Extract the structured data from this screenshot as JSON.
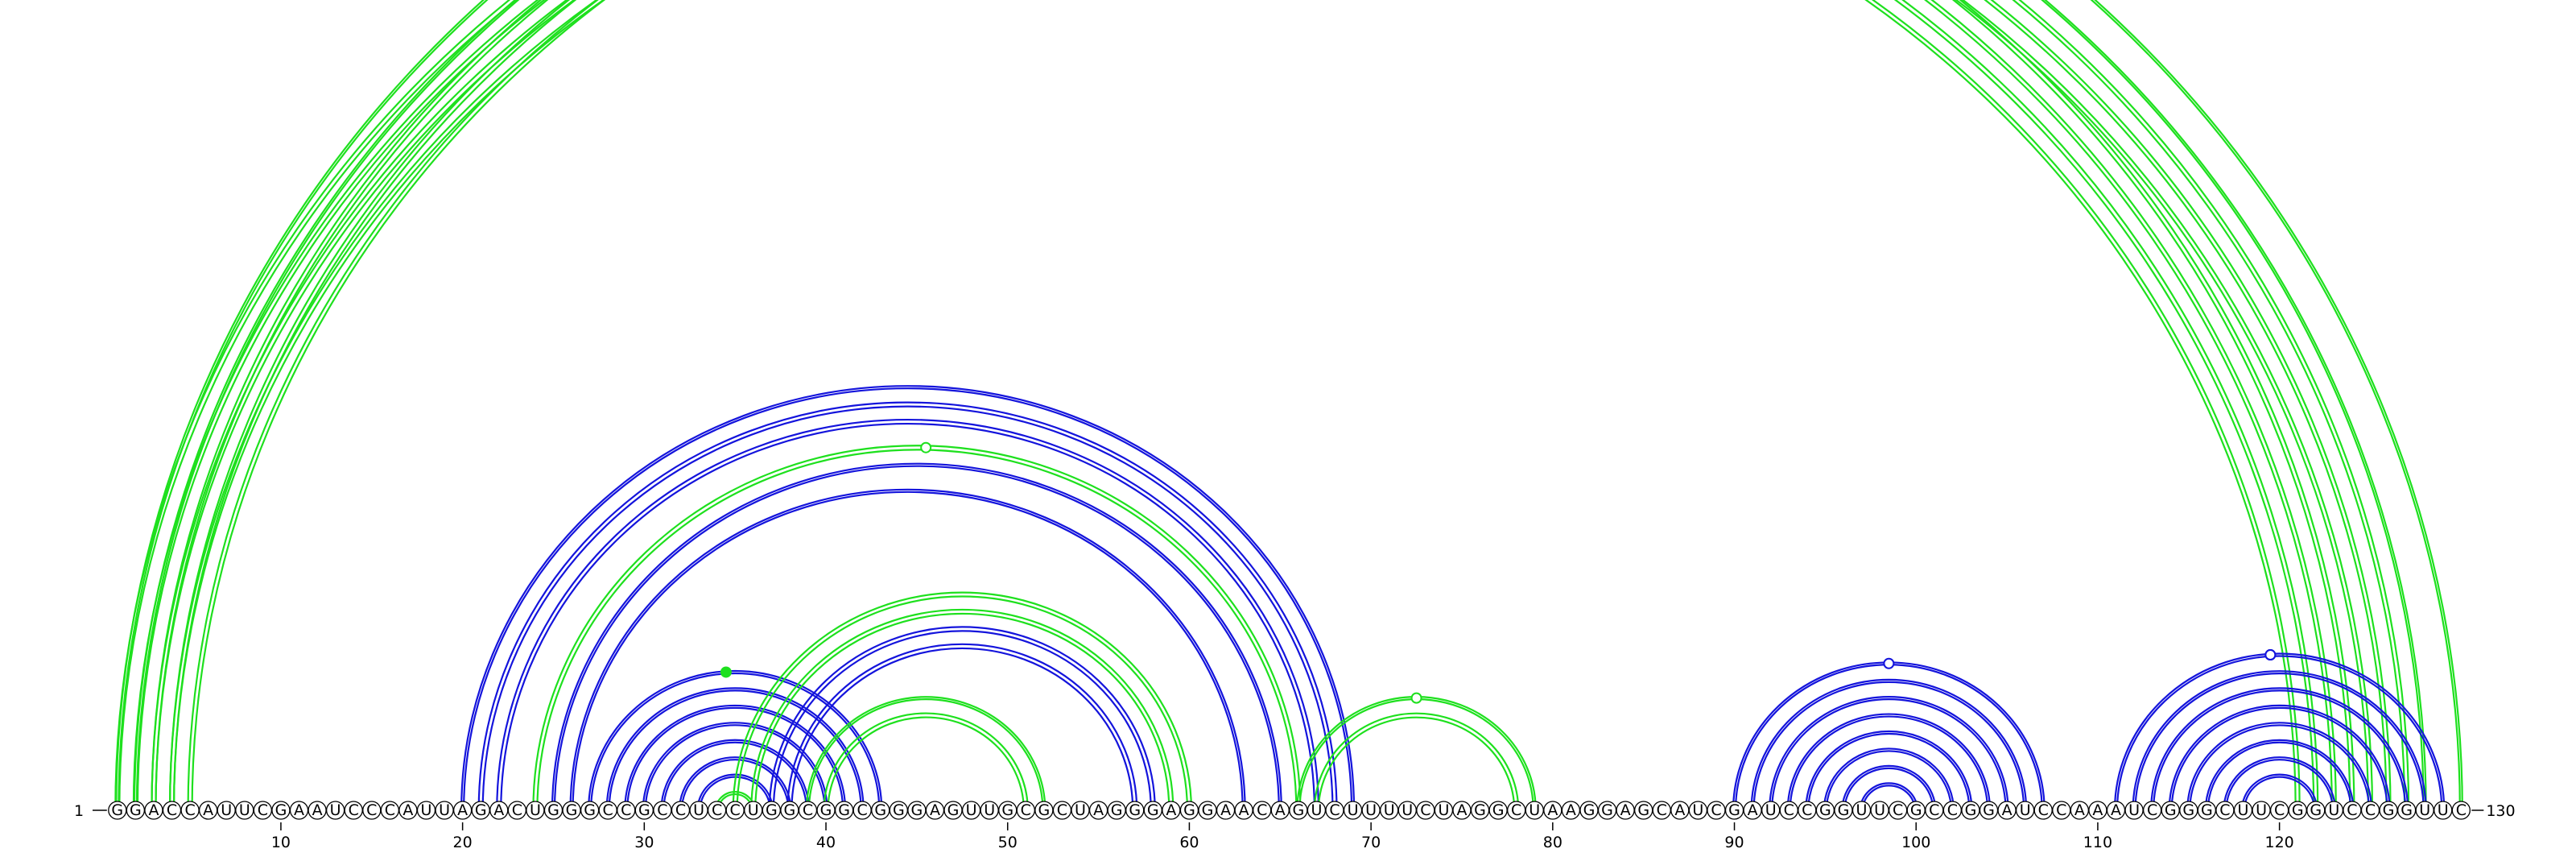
{
  "sequence": "GGACCAUUCGAAUCCCAUUAGACUGGGCCGCCUCCUGGCGGCGGGAGUUGCGCUAGGGAGGAACAGUCUUUUCUAGGCUAAGGAGCAUCGAUCCGGUUCGCCGGAUCCAAAUCGGGCUUCGGUCCGGUUC",
  "start_label": "1",
  "end_label": "130",
  "tick_positions": [
    10,
    20,
    30,
    40,
    50,
    60,
    70,
    80,
    90,
    100,
    110,
    120
  ],
  "colors": {
    "green": "#1ee01e",
    "blue": "#1414dc"
  },
  "pairs": [
    [
      1,
      130,
      "green",
      3
    ],
    [
      2,
      128,
      "green",
      3
    ],
    [
      3,
      127,
      "green",
      5
    ],
    [
      4,
      126,
      "green",
      5
    ],
    [
      5,
      125,
      "green",
      5
    ],
    [
      1,
      124,
      "green",
      5
    ],
    [
      2,
      123,
      "green",
      5
    ],
    [
      3,
      122,
      "green",
      5
    ],
    [
      4,
      121,
      "green",
      5
    ],
    [
      20,
      69,
      "blue",
      3
    ],
    [
      21,
      68,
      "blue",
      5
    ],
    [
      22,
      67,
      "blue",
      5
    ],
    [
      24,
      66,
      "green",
      5
    ],
    [
      25,
      65,
      "blue",
      3
    ],
    [
      26,
      63,
      "blue",
      3
    ],
    [
      27,
      43,
      "blue",
      3
    ],
    [
      28,
      42,
      "blue",
      3
    ],
    [
      29,
      41,
      "blue",
      3
    ],
    [
      30,
      40,
      "blue",
      3
    ],
    [
      31,
      39,
      "blue",
      3
    ],
    [
      32,
      38,
      "blue",
      3
    ],
    [
      33,
      37,
      "blue",
      3
    ],
    [
      34,
      36,
      "green",
      3
    ],
    [
      35,
      60,
      "green",
      5
    ],
    [
      36,
      59,
      "green",
      5
    ],
    [
      37,
      58,
      "blue",
      5
    ],
    [
      38,
      57,
      "blue",
      5
    ],
    [
      39,
      52,
      "green",
      3
    ],
    [
      40,
      51,
      "green",
      5
    ],
    [
      66,
      79,
      "green",
      3
    ],
    [
      67,
      78,
      "green",
      5
    ],
    [
      90,
      107,
      "blue",
      3
    ],
    [
      91,
      106,
      "blue",
      3
    ],
    [
      92,
      105,
      "blue",
      3
    ],
    [
      93,
      104,
      "blue",
      3
    ],
    [
      94,
      103,
      "blue",
      3
    ],
    [
      95,
      102,
      "blue",
      3
    ],
    [
      96,
      101,
      "blue",
      3
    ],
    [
      97,
      100,
      "blue",
      3
    ],
    [
      111,
      129,
      "blue",
      3
    ],
    [
      112,
      128,
      "blue",
      3
    ],
    [
      113,
      127,
      "blue",
      3
    ],
    [
      114,
      126,
      "blue",
      3
    ],
    [
      115,
      125,
      "blue",
      3
    ],
    [
      116,
      124,
      "blue",
      3
    ],
    [
      117,
      123,
      "blue",
      3
    ],
    [
      118,
      122,
      "blue",
      3
    ]
  ],
  "markers": [
    [
      65.5,
      0.98,
      "green",
      "open"
    ],
    [
      45.5,
      0.99,
      "green",
      "open"
    ],
    [
      72.5,
      0.99,
      "green",
      "open"
    ],
    [
      119.5,
      0.96,
      "blue",
      "open"
    ],
    [
      119.5,
      0.96,
      "blue",
      "open"
    ],
    [
      119.5,
      0.9,
      "blue",
      "open"
    ],
    [
      98.5,
      0.9,
      "blue",
      "open"
    ],
    [
      34.5,
      0.5,
      "green",
      "filled"
    ]
  ]
}
